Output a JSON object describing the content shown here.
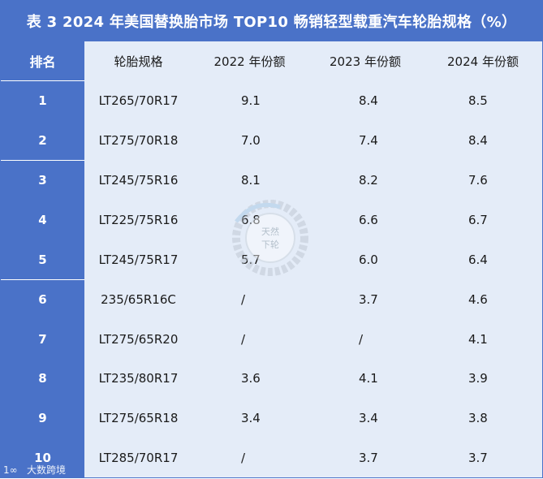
{
  "title": "表 3 2024 年美国替换胎市场 TOP10 畅销轻型载重汽车轮胎规格（%）",
  "headers": {
    "rank": "排名",
    "spec": "轮胎规格",
    "y2022": "2022 年份额",
    "y2023": "2023 年份额",
    "y2024": "2024 年份额"
  },
  "rows": [
    {
      "rank": "1",
      "spec": "LT265/70R17",
      "y2022": "9.1",
      "y2023": "8.4",
      "y2024": "8.5"
    },
    {
      "rank": "2",
      "spec": "LT275/70R18",
      "y2022": "7.0",
      "y2023": "7.4",
      "y2024": "8.4"
    },
    {
      "rank": "3",
      "spec": "LT245/75R16",
      "y2022": "8.1",
      "y2023": "8.2",
      "y2024": "7.6"
    },
    {
      "rank": "4",
      "spec": "LT225/75R16",
      "y2022": "6.8",
      "y2023": "6.6",
      "y2024": "6.7"
    },
    {
      "rank": "5",
      "spec": "LT245/75R17",
      "y2022": "5.7",
      "y2023": "6.0",
      "y2024": "6.4"
    },
    {
      "rank": "6",
      "spec": "235/65R16C",
      "y2022": "/",
      "y2023": "3.7",
      "y2024": "4.6"
    },
    {
      "rank": "7",
      "spec": "LT275/65R20",
      "y2022": "/",
      "y2023": "/",
      "y2024": "4.1"
    },
    {
      "rank": "8",
      "spec": "LT235/80R17",
      "y2022": "3.6",
      "y2023": "4.1",
      "y2024": "3.9"
    },
    {
      "rank": "9",
      "spec": "LT275/65R18",
      "y2022": "3.4",
      "y2023": "3.4",
      "y2024": "3.8"
    },
    {
      "rank": "10",
      "spec": "LT285/70R17",
      "y2022": "/",
      "y2023": "3.7",
      "y2024": "3.7"
    }
  ],
  "watermark_text": "天然下轮",
  "footer_logo_text": "大数跨境",
  "colors": {
    "header_blue": "#4a72c8",
    "row_bg": "#e4ecf8",
    "text": "#1a1a1a"
  }
}
